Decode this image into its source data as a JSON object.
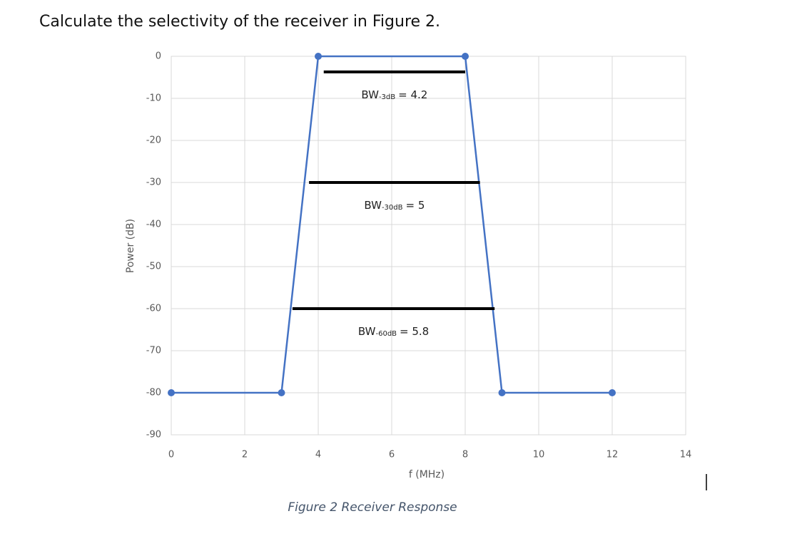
{
  "question": "Calculate the selectivity of the receiver in Figure 2.",
  "chart_data": {
    "type": "line",
    "x": [
      0,
      3,
      4,
      8,
      9,
      12
    ],
    "series": [
      {
        "color": "#4472c4",
        "values": [
          -80,
          -80,
          0,
          0,
          -80,
          -80
        ]
      }
    ],
    "xlim": [
      0,
      14
    ],
    "xticks": [
      0,
      2,
      4,
      6,
      8,
      10,
      12,
      14
    ],
    "ylim": [
      -90,
      0
    ],
    "yticks": [
      0,
      -10,
      -20,
      -30,
      -40,
      -50,
      -60,
      -70,
      -80,
      -90
    ],
    "xlabel": "f (MHz)",
    "ylabel": "Power (dB)",
    "grid": true,
    "annotations": [
      {
        "label": "BW",
        "sub": "-3dB",
        "text": "= 4.2",
        "y": -3.7,
        "x": [
          4.15,
          8
        ]
      },
      {
        "label": "BW",
        "sub": "-30dB",
        "text": "= 5",
        "y": -30,
        "x": [
          3.75,
          8.4
        ]
      },
      {
        "label": "BW",
        "sub": "-60dB",
        "text": "= 5.8",
        "y": -60,
        "x": [
          3.3,
          8.8
        ]
      }
    ]
  },
  "caption": "Figure 2 Receiver Response"
}
